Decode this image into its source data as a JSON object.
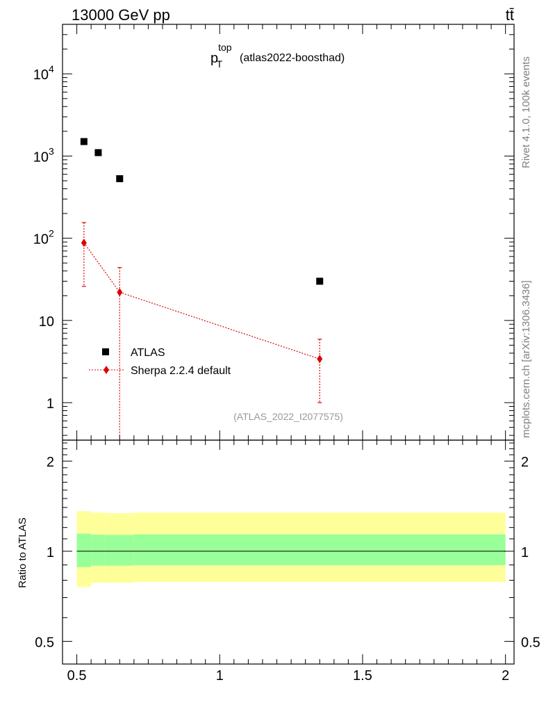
{
  "header": {
    "energy_label": "13000 GeV pp",
    "process_label": "tt̄"
  },
  "side_labels": {
    "rivet": "Rivet 4.1.0,  100k events",
    "mcplots": "mcplots.cern.ch [arXiv:1306.3436]"
  },
  "chart_data": [
    {
      "type": "scatter",
      "title_main": "p",
      "title_sup": "top",
      "title_sub": "T",
      "title_rest": "(atlas2022-boosthad)",
      "analysis_tag": "(ATLAS_2022_I2077575)",
      "yscale": "log",
      "ylim": [
        0.35,
        40000
      ],
      "xlim": [
        0.45,
        2.03
      ],
      "y_ticks": [
        {
          "value": 1,
          "label": "1",
          "sup": ""
        },
        {
          "value": 10,
          "label": "10",
          "sup": ""
        },
        {
          "value": 100,
          "label": "10",
          "sup": "2"
        },
        {
          "value": 1000,
          "label": "10",
          "sup": "3"
        },
        {
          "value": 10000,
          "label": "10",
          "sup": "4"
        }
      ],
      "legend": [
        {
          "name": "ATLAS",
          "marker": "square",
          "color": "#000000"
        },
        {
          "name": "Sherpa 2.2.4 default",
          "marker": "diamond",
          "color": "#dd0000"
        }
      ],
      "series": [
        {
          "name": "ATLAS",
          "points": [
            {
              "x": 0.525,
              "y": 1500
            },
            {
              "x": 0.575,
              "y": 1100
            },
            {
              "x": 0.65,
              "y": 530
            },
            {
              "x": 1.35,
              "y": 30
            }
          ]
        },
        {
          "name": "Sherpa 2.2.4 default",
          "points": [
            {
              "x": 0.525,
              "y": 88,
              "ylo": 26,
              "yhi": 155
            },
            {
              "x": 0.65,
              "y": 22,
              "ylo": 0.35,
              "yhi": 44
            },
            {
              "x": 1.35,
              "y": 3.4,
              "ylo": 1.0,
              "yhi": 5.9
            }
          ]
        }
      ]
    },
    {
      "type": "area",
      "ylabel": "Ratio to ATLAS",
      "yscale": "log",
      "ylim": [
        0.42,
        2.35
      ],
      "xlim": [
        0.45,
        2.03
      ],
      "y_ticks": [
        {
          "value": 0.5,
          "label": "0.5"
        },
        {
          "value": 1,
          "label": "1"
        },
        {
          "value": 2,
          "label": "2"
        }
      ],
      "x_ticks": [
        {
          "value": 0.5,
          "label": "0.5"
        },
        {
          "value": 1,
          "label": "1"
        },
        {
          "value": 1.5,
          "label": "1.5"
        },
        {
          "value": 2,
          "label": "2"
        }
      ],
      "bins": [
        {
          "x0": 0.5,
          "x1": 0.55,
          "yellow": [
            0.76,
            1.36
          ],
          "green": [
            0.885,
            1.145
          ]
        },
        {
          "x0": 0.55,
          "x1": 0.6,
          "yellow": [
            0.785,
            1.345
          ],
          "green": [
            0.895,
            1.135
          ]
        },
        {
          "x0": 0.6,
          "x1": 0.7,
          "yellow": [
            0.785,
            1.34
          ],
          "green": [
            0.895,
            1.133
          ]
        },
        {
          "x0": 0.7,
          "x1": 2.0,
          "yellow": [
            0.79,
            1.345
          ],
          "green": [
            0.898,
            1.138
          ]
        }
      ],
      "band_colors": {
        "yellow": "#ffff99",
        "green": "#99ff99"
      },
      "reference_line": 1
    }
  ]
}
